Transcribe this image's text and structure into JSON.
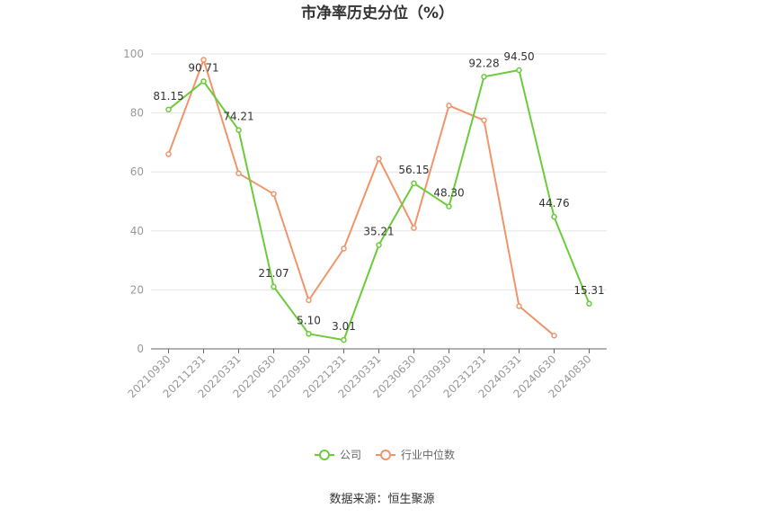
{
  "chart_data": {
    "type": "line",
    "title": "市净率历史分位（%）",
    "categories": [
      "20210930",
      "20211231",
      "20220331",
      "20220630",
      "20220930",
      "20221231",
      "20230331",
      "20230630",
      "20230930",
      "20231231",
      "20240331",
      "20240630",
      "20240830"
    ],
    "series": [
      {
        "name": "公司",
        "color": "#6bcb3a",
        "values": [
          81.15,
          90.71,
          74.21,
          21.07,
          5.1,
          3.01,
          35.21,
          56.15,
          48.3,
          92.28,
          94.5,
          44.76,
          15.31
        ],
        "labels": [
          "81.15",
          "90.71",
          "74.21",
          "21.07",
          "5.10",
          "3.01",
          "35.21",
          "56.15",
          "48.30",
          "92.28",
          "94.50",
          "44.76",
          "15.31"
        ]
      },
      {
        "name": "行业中位数",
        "color": "#f0956a",
        "values": [
          66.0,
          98.0,
          59.5,
          52.5,
          16.5,
          34.0,
          64.5,
          41.0,
          82.5,
          77.5,
          14.5,
          4.5,
          null
        ]
      }
    ],
    "ylim": [
      0,
      100
    ],
    "yticks": [
      0,
      20,
      40,
      60,
      80,
      100
    ],
    "grid": true,
    "legend": "bottom-center"
  },
  "source": "数据来源：恒生聚源"
}
